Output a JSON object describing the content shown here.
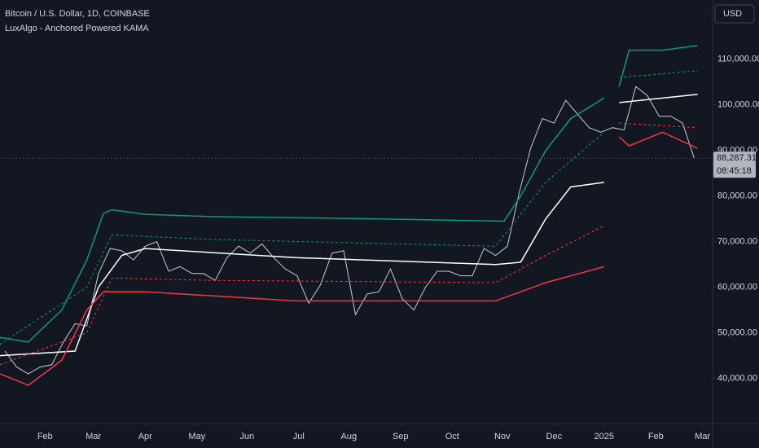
{
  "chart_data": {
    "type": "line",
    "title": "Bitcoin / U.S. Dollar, 1D, COINBASE",
    "subtitle": "LuxAlgo - Anchored Powered KAMA",
    "currency": "USD",
    "last_price": {
      "value": 88287.31,
      "label": "88,287.31"
    },
    "countdown": "08:45:18",
    "xlim": [
      -27,
      400
    ],
    "ylim": [
      30100,
      123000
    ],
    "xticks": [
      {
        "value": 0,
        "label": "Feb"
      },
      {
        "value": 29,
        "label": "Mar"
      },
      {
        "value": 60,
        "label": "Apr"
      },
      {
        "value": 91,
        "label": "May"
      },
      {
        "value": 121,
        "label": "Jun"
      },
      {
        "value": 152,
        "label": "Jul"
      },
      {
        "value": 182,
        "label": "Aug"
      },
      {
        "value": 213,
        "label": "Sep"
      },
      {
        "value": 244,
        "label": "Oct"
      },
      {
        "value": 274,
        "label": "Nov"
      },
      {
        "value": 305,
        "label": "Dec"
      },
      {
        "value": 335,
        "label": "2025"
      },
      {
        "value": 366,
        "label": "Feb"
      },
      {
        "value": 394,
        "label": "Mar"
      }
    ],
    "yticks": [
      {
        "value": 40000,
        "label": "40,000.00"
      },
      {
        "value": 50000,
        "label": "50,000.00"
      },
      {
        "value": 60000,
        "label": "60,000.00"
      },
      {
        "value": 70000,
        "label": "70,000.00"
      },
      {
        "value": 80000,
        "label": "80,000.00"
      },
      {
        "value": 90000,
        "label": "90,000.00"
      },
      {
        "value": 100000,
        "label": "100,000.00"
      },
      {
        "value": 110000,
        "label": "110,000.00"
      }
    ],
    "series": [
      {
        "color": "#c8cbd3",
        "width": 1,
        "x": [
          -24,
          -17,
          -10,
          -3,
          4,
          11,
          18,
          25,
          32,
          39,
          46,
          53,
          60,
          67,
          74,
          81,
          88,
          95,
          102,
          109,
          116,
          123,
          130,
          137,
          144,
          151,
          158,
          165,
          172,
          179,
          186,
          193,
          200,
          207,
          214,
          221,
          228,
          235,
          242,
          249,
          256,
          263,
          270,
          277,
          284,
          291,
          298,
          305,
          312,
          319,
          326,
          333,
          340,
          347,
          354,
          361,
          368,
          375,
          382,
          389
        ],
        "values": [
          46000,
          42500,
          41000,
          42500,
          43000,
          48000,
          52000,
          51500,
          63000,
          68500,
          68000,
          66000,
          69000,
          70000,
          63500,
          64500,
          63000,
          63000,
          61500,
          66500,
          69000,
          67500,
          69500,
          66500,
          64000,
          62500,
          56500,
          60500,
          67500,
          68000,
          54000,
          58500,
          59000,
          64000,
          57500,
          55000,
          60000,
          63500,
          63500,
          62500,
          62500,
          68500,
          67000,
          69000,
          80500,
          90500,
          97000,
          96000,
          101000,
          98000,
          95000,
          94000,
          95000,
          94500,
          104000,
          102000,
          97500,
          97500,
          96000,
          88287.31
        ]
      },
      {
        "color": "#ffffff",
        "width": 1.5,
        "x": [
          -27,
          18,
          32,
          46,
          60,
          150,
          270,
          285,
          300,
          315,
          335,
          null,
          344,
          391
        ],
        "values": [
          45000,
          46000,
          60000,
          67000,
          68500,
          66500,
          65000,
          65500,
          75000,
          82000,
          83000,
          null,
          100500,
          102300
        ]
      },
      {
        "color": "#089981",
        "width": 1.5,
        "x": [
          -27,
          -10,
          10,
          25,
          35,
          40,
          60,
          100,
          200,
          275,
          285,
          300,
          315,
          335,
          null,
          344,
          350,
          370,
          391
        ],
        "values": [
          49000,
          48000,
          55000,
          66000,
          76200,
          77000,
          76000,
          75500,
          75000,
          74500,
          80000,
          90000,
          97000,
          101500,
          null,
          104000,
          112000,
          112000,
          113000
        ]
      },
      {
        "color": "#f23645",
        "width": 1.5,
        "x": [
          -27,
          -10,
          10,
          25,
          35,
          60,
          150,
          200,
          270,
          285,
          300,
          320,
          335,
          null,
          344,
          350,
          370,
          391
        ],
        "values": [
          41000,
          38500,
          44000,
          55000,
          59000,
          59000,
          57000,
          57000,
          57000,
          59000,
          61000,
          63000,
          64500,
          null,
          93000,
          91000,
          94000,
          90500
        ]
      },
      {
        "color": "#089981",
        "width": 1,
        "dash": true,
        "x": [
          -27,
          25,
          40,
          100,
          270,
          300,
          335,
          null,
          344,
          391
        ],
        "values": [
          47500,
          60000,
          71500,
          70500,
          69000,
          83000,
          94000,
          null,
          106000,
          107500
        ]
      },
      {
        "color": "#f23645",
        "width": 1,
        "dash": true,
        "x": [
          -27,
          25,
          40,
          100,
          270,
          300,
          335,
          null,
          344,
          391
        ],
        "values": [
          43000,
          50000,
          62000,
          61500,
          61000,
          67000,
          73500,
          null,
          96000,
          95000
        ]
      }
    ]
  }
}
